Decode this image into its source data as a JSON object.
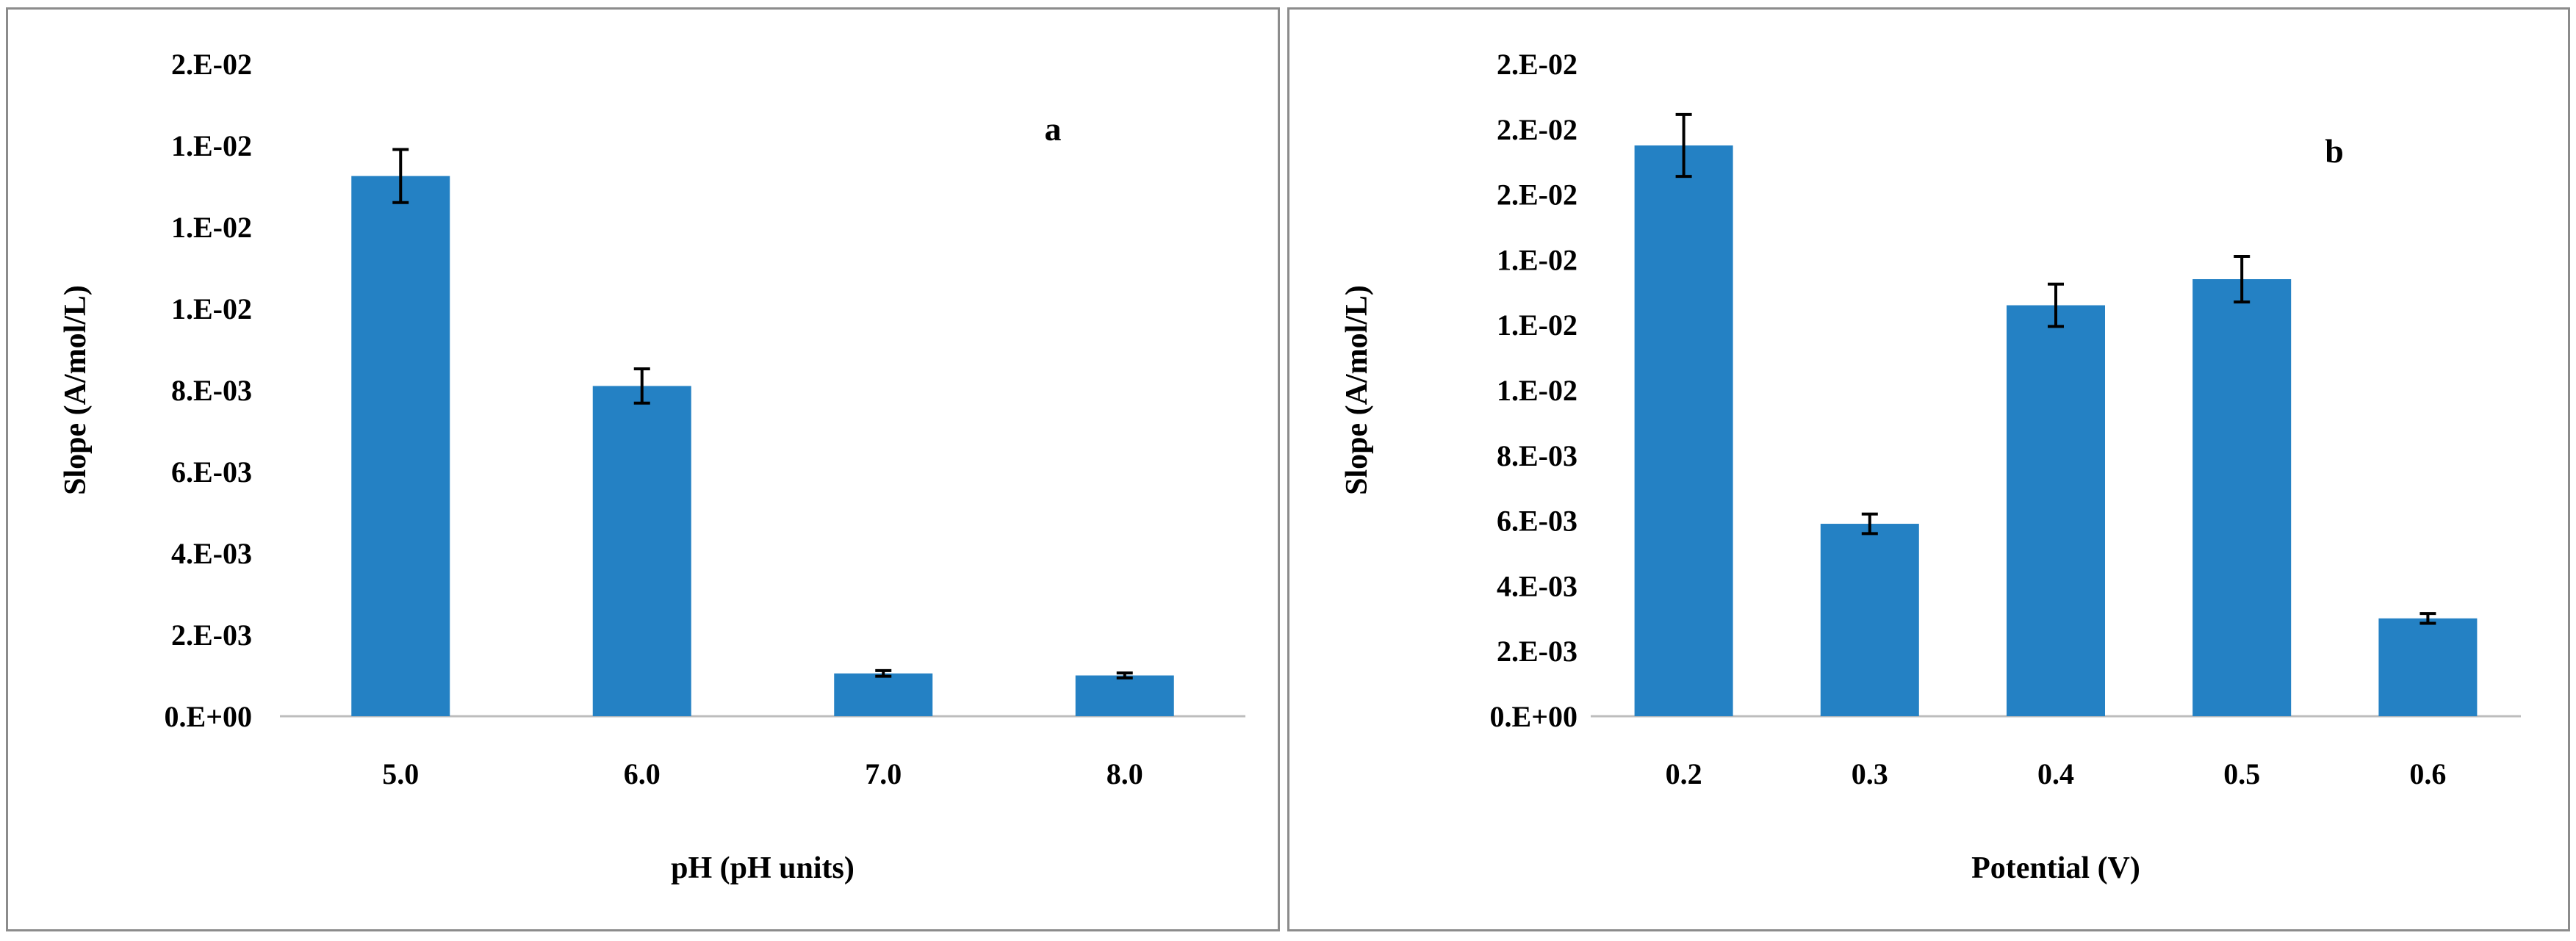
{
  "chart_data": [
    {
      "type": "bar",
      "panel_label": "a",
      "xlabel": "pH (pH units)",
      "ylabel": "Slope (A/mol/L)",
      "categories": [
        "5.0",
        "6.0",
        "7.0",
        "8.0"
      ],
      "values": [
        0.01325,
        0.0081,
        0.00105,
        0.001
      ],
      "error": [
        0.00065,
        0.00042,
        7e-05,
        6e-05
      ],
      "ylim": [
        0,
        0.016
      ],
      "yticks": [
        0,
        0.002,
        0.004,
        0.006,
        0.008,
        0.01,
        0.012,
        0.014,
        0.016
      ],
      "ytick_labels": [
        "0.E+00",
        "2.E-03",
        "4.E-03",
        "6.E-03",
        "8.E-03",
        "1.E-02",
        "1.E-02",
        "1.E-02",
        "2.E-02"
      ],
      "grid": false,
      "legend": "none",
      "bar_color": "#2481c4"
    },
    {
      "type": "bar",
      "panel_label": "b",
      "xlabel": "Potential (V)",
      "ylabel": "Slope (A/mol/L)",
      "categories": [
        "0.2",
        "0.3",
        "0.4",
        "0.5",
        "0.6"
      ],
      "values": [
        0.0175,
        0.0059,
        0.0126,
        0.0134,
        0.003
      ],
      "error": [
        0.00095,
        0.0003,
        0.00065,
        0.0007,
        0.00015
      ],
      "ylim": [
        0,
        0.02
      ],
      "yticks": [
        0,
        0.002,
        0.004,
        0.006,
        0.008,
        0.01,
        0.012,
        0.014,
        0.016,
        0.018,
        0.02
      ],
      "ytick_labels": [
        "0.E+00",
        "2.E-03",
        "4.E-03",
        "6.E-03",
        "8.E-03",
        "1.E-02",
        "1.E-02",
        "1.E-02",
        "2.E-02",
        "2.E-02",
        "2.E-02"
      ],
      "grid": false,
      "legend": "none",
      "bar_color": "#2481c4"
    }
  ]
}
